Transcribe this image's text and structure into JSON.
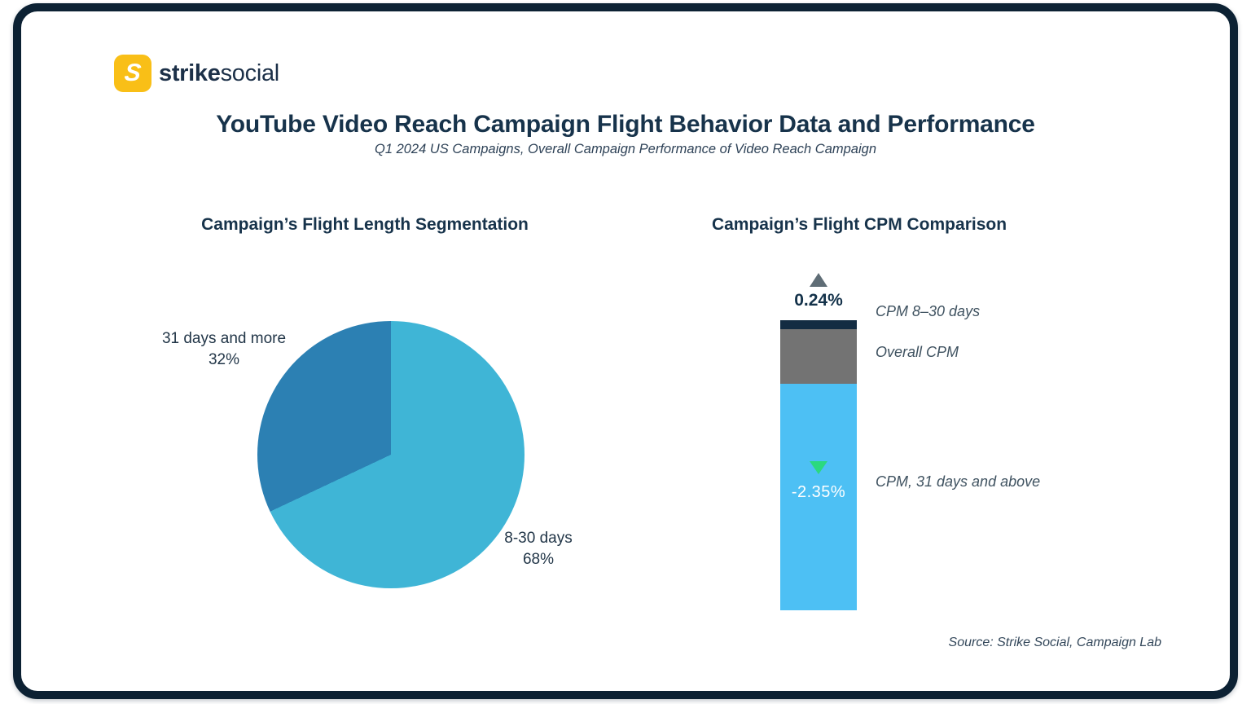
{
  "header": {
    "logo": {
      "icon_letter": "S",
      "brand_bold": "strike",
      "brand_regular": "social"
    },
    "title": "YouTube Video Reach Campaign Flight Behavior Data and Performance",
    "subtitle": "Q1 2024 US Campaigns, Overall Campaign Performance of Video Reach Campaign"
  },
  "left_chart": {
    "title": "Campaign’s Flight Length Segmentation",
    "callout_31": {
      "label": "31 days and more",
      "value": "32%"
    },
    "callout_830": {
      "label": "8-30 days",
      "value": "68%"
    }
  },
  "right_chart": {
    "title": "Campaign’s Flight CPM Comparison",
    "delta_top": "0.24%",
    "delta_bottom": "-2.35%",
    "label_cpm_830": "CPM 8–30 days",
    "label_overall": "Overall CPM",
    "label_cpm_31": "CPM, 31 days and above"
  },
  "footer": {
    "source": "Source: Strike Social, Campaign Lab"
  },
  "colors": {
    "logo_yellow": "#f9bf17",
    "card_border_navy": "#0c2133",
    "title_navy": "#17334b",
    "slate_label": "#3f5260",
    "pie_light_blue": "#3fb5d6",
    "pie_dark_blue": "#2c80b3",
    "bar_navy": "#132c42",
    "bar_gray": "#737373",
    "bar_sky_blue": "#4dc0f4",
    "delta_up_gray": "#5f6d76",
    "delta_down_green": "#2bd97f"
  },
  "chart_data": [
    {
      "type": "pie",
      "title": "Campaign’s Flight Length Segmentation",
      "labels": [
        "8-30 days",
        "31 days and more"
      ],
      "values": [
        68,
        32
      ],
      "value_labels": [
        "68%",
        "32%"
      ],
      "colors": [
        "#3fb5d6",
        "#2c80b3"
      ],
      "start_angle_deg": 0,
      "direction": "clockwise",
      "legend_position": "callouts"
    },
    {
      "type": "bar",
      "subtype": "single-stacked-column",
      "title": "Campaign’s Flight CPM Comparison",
      "segments": [
        {
          "name": "CPM 8-30 days",
          "height_share": 11,
          "color": "#132c42",
          "delta_label": "0.24%",
          "delta_direction": "up",
          "delta_color": "#5f6d76"
        },
        {
          "name": "Overall CPM",
          "height_share": 67,
          "color": "#737373"
        },
        {
          "name": "CPM, 31 days and above",
          "height_share": 278,
          "color": "#4dc0f4",
          "delta_label": "-2.35%",
          "delta_direction": "down",
          "delta_color": "#2bd97f"
        }
      ],
      "grid": false,
      "axes_visible": false
    }
  ]
}
